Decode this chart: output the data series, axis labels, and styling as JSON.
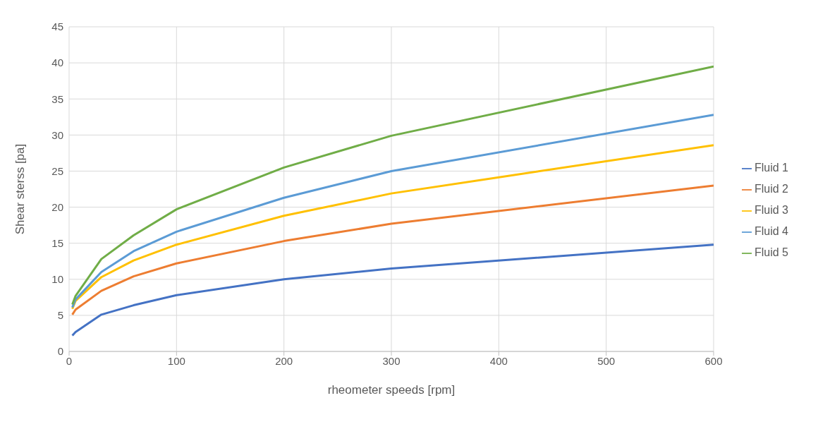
{
  "chart_data": {
    "type": "line",
    "xlabel": "rheometer speeds [rpm]",
    "ylabel": "Shear sterss [pa]",
    "x": [
      3,
      6,
      30,
      60,
      100,
      200,
      300,
      600
    ],
    "series": [
      {
        "name": "Fluid 1",
        "color": "#4472c4",
        "values": [
          2.2,
          2.7,
          5.1,
          6.4,
          7.8,
          10.0,
          11.5,
          14.8
        ]
      },
      {
        "name": "Fluid 2",
        "color": "#ed7d31",
        "values": [
          5.1,
          5.8,
          8.4,
          10.4,
          12.2,
          15.3,
          17.7,
          23.0
        ]
      },
      {
        "name": "Fluid 3",
        "color": "#ffc000",
        "values": [
          5.9,
          7.0,
          10.3,
          12.6,
          14.8,
          18.8,
          21.9,
          28.6
        ]
      },
      {
        "name": "Fluid 4",
        "color": "#5b9bd5",
        "values": [
          6.1,
          7.2,
          11.0,
          13.9,
          16.6,
          21.3,
          25.0,
          32.8
        ]
      },
      {
        "name": "Fluid 5",
        "color": "#70ad47",
        "values": [
          6.5,
          7.7,
          12.8,
          16.1,
          19.7,
          25.5,
          29.9,
          39.5
        ]
      }
    ],
    "xlim": [
      0,
      600
    ],
    "xticks": [
      0,
      100,
      200,
      300,
      400,
      500,
      600
    ],
    "ylim": [
      0,
      45
    ],
    "yticks": [
      0,
      5,
      10,
      15,
      20,
      25,
      30,
      35,
      40,
      45
    ],
    "grid": true,
    "legend": "right",
    "marker": "none",
    "line_style": "solid"
  }
}
